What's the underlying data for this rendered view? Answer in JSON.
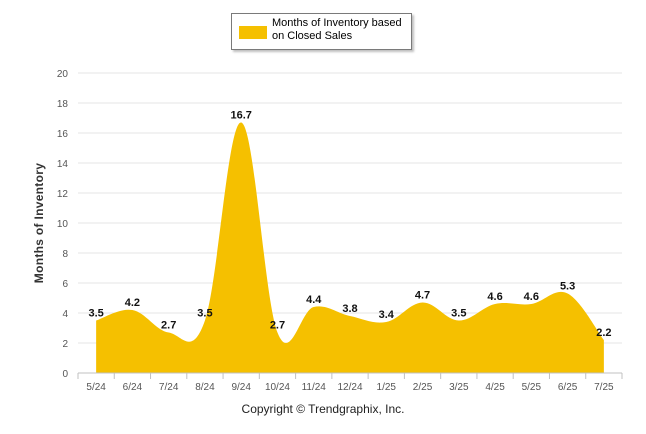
{
  "legend": {
    "label": "Months of Inventory based on Closed Sales"
  },
  "credit": "Copyright © Trendgraphix, Inc.",
  "colors": {
    "fill": "#f5c000",
    "grid": "#e6e6e6",
    "axis": "#c0c0c0"
  },
  "chart_data": {
    "type": "area",
    "categories": [
      "5/24",
      "6/24",
      "7/24",
      "8/24",
      "9/24",
      "10/24",
      "11/24",
      "12/24",
      "1/25",
      "2/25",
      "3/25",
      "4/25",
      "5/25",
      "6/25",
      "7/25"
    ],
    "series": [
      {
        "name": "Months of Inventory based on Closed Sales",
        "values": [
          3.5,
          4.2,
          2.7,
          3.5,
          16.7,
          2.7,
          4.4,
          3.8,
          3.4,
          4.7,
          3.5,
          4.6,
          4.6,
          5.3,
          2.2
        ]
      }
    ],
    "data_labels": [
      "3.5",
      "4.2",
      "2.7",
      "3.5",
      "16.7",
      "2.7",
      "4.4",
      "3.8",
      "3.4",
      "4.7",
      "3.5",
      "4.6",
      "4.6",
      "5.3",
      "2.2"
    ],
    "ylabel": "Months of Inventory",
    "xlabel": "",
    "ylim": [
      0,
      20
    ],
    "yticks": [
      "0",
      "2",
      "4",
      "6",
      "8",
      "10",
      "12",
      "14",
      "16",
      "18",
      "20"
    ],
    "grid": true,
    "legend_position": "top-center",
    "smooth": true
  }
}
